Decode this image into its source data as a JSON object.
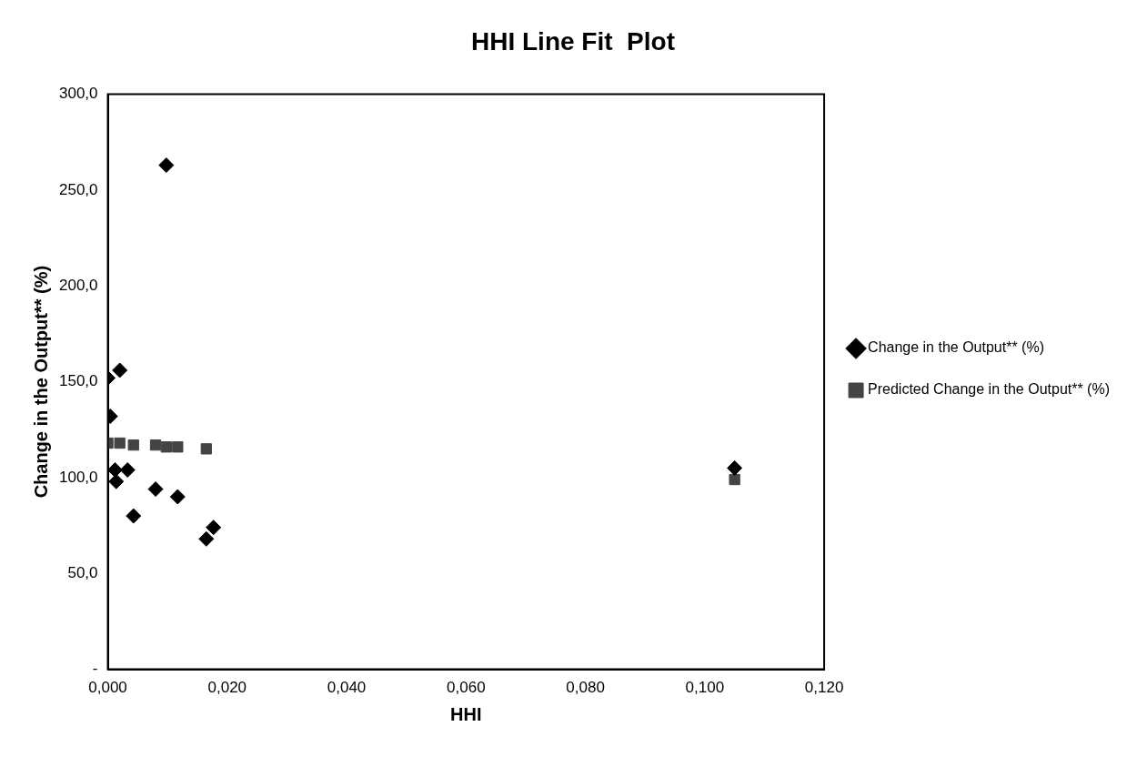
{
  "chart_data": {
    "type": "scatter",
    "title": "HHI Line Fit  Plot",
    "xlabel": "HHI",
    "ylabel": "Change in the Output** (%)",
    "x": [
      0.0,
      0.0004,
      0.0012,
      0.0014,
      0.002,
      0.0033,
      0.0043,
      0.008,
      0.0098,
      0.0117,
      0.0165,
      0.0177,
      0.105
    ],
    "series": [
      {
        "name": "Change in the Output** (%)",
        "color": "#000000",
        "marker": "diamond",
        "values": [
          152,
          132,
          104,
          98,
          156,
          104,
          80,
          94,
          263,
          90,
          68,
          74,
          105
        ]
      },
      {
        "name": "Predicted Change in the Output** (%)",
        "color": "#444444",
        "marker": "square",
        "values": [
          118,
          null,
          null,
          null,
          118,
          null,
          117,
          117,
          116,
          116,
          115,
          null,
          99
        ]
      }
    ],
    "xlim": [
      0,
      0.12
    ],
    "xticks": [
      {
        "value": 0,
        "label": "0,000"
      },
      {
        "value": 0.02,
        "label": "0,020"
      },
      {
        "value": 0.04,
        "label": "0,040"
      },
      {
        "value": 0.06,
        "label": "0,060"
      },
      {
        "value": 0.08,
        "label": "0,080"
      },
      {
        "value": 0.1,
        "label": "0,100"
      },
      {
        "value": 0.12,
        "label": "0,120"
      }
    ],
    "ylim": [
      0,
      300
    ],
    "yticks": [
      {
        "value": 0,
        "label": "-"
      },
      {
        "value": 50,
        "label": "50,0"
      },
      {
        "value": 100,
        "label": "100,0"
      },
      {
        "value": 150,
        "label": "150,0"
      },
      {
        "value": 200,
        "label": "200,0"
      },
      {
        "value": 250,
        "label": "250,0"
      },
      {
        "value": 300,
        "label": "300,0"
      }
    ],
    "grid": false,
    "legend": "right"
  }
}
